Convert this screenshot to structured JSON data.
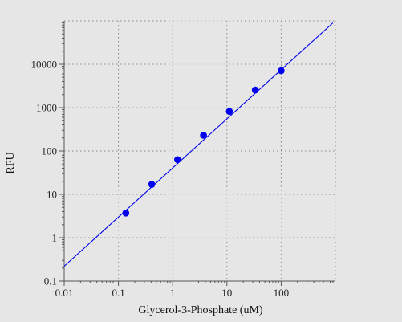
{
  "chart_data": {
    "type": "scatter",
    "xlabel": "Glycerol-3-Phosphate (uM)",
    "ylabel": "RFU",
    "x_scale": "log",
    "y_scale": "log",
    "xlim": [
      0.01,
      1000
    ],
    "ylim": [
      0.1,
      100000
    ],
    "x_ticks": [
      0.01,
      0.1,
      1,
      10,
      100
    ],
    "x_tick_labels": [
      "0.01",
      "0.1",
      "1",
      "10",
      "100"
    ],
    "y_ticks": [
      0.1,
      1,
      10,
      100,
      1000,
      10000
    ],
    "y_tick_labels": [
      "0.1",
      "1",
      "10",
      "100",
      "1000",
      "10000"
    ],
    "grid": true,
    "colors": {
      "series": "#0000ee",
      "background": "#e6e6e6",
      "axis": "#555555",
      "grid": "#8a8a8a"
    },
    "series": [
      {
        "x": [
          0.137,
          0.412,
          1.23,
          3.7,
          11.1,
          33.3,
          100
        ],
        "y": [
          3.7,
          17,
          63,
          230,
          820,
          2550,
          7100
        ]
      }
    ],
    "fit_line": {
      "x": [
        0.01,
        900
      ],
      "y": [
        0.22,
        90000
      ]
    }
  }
}
